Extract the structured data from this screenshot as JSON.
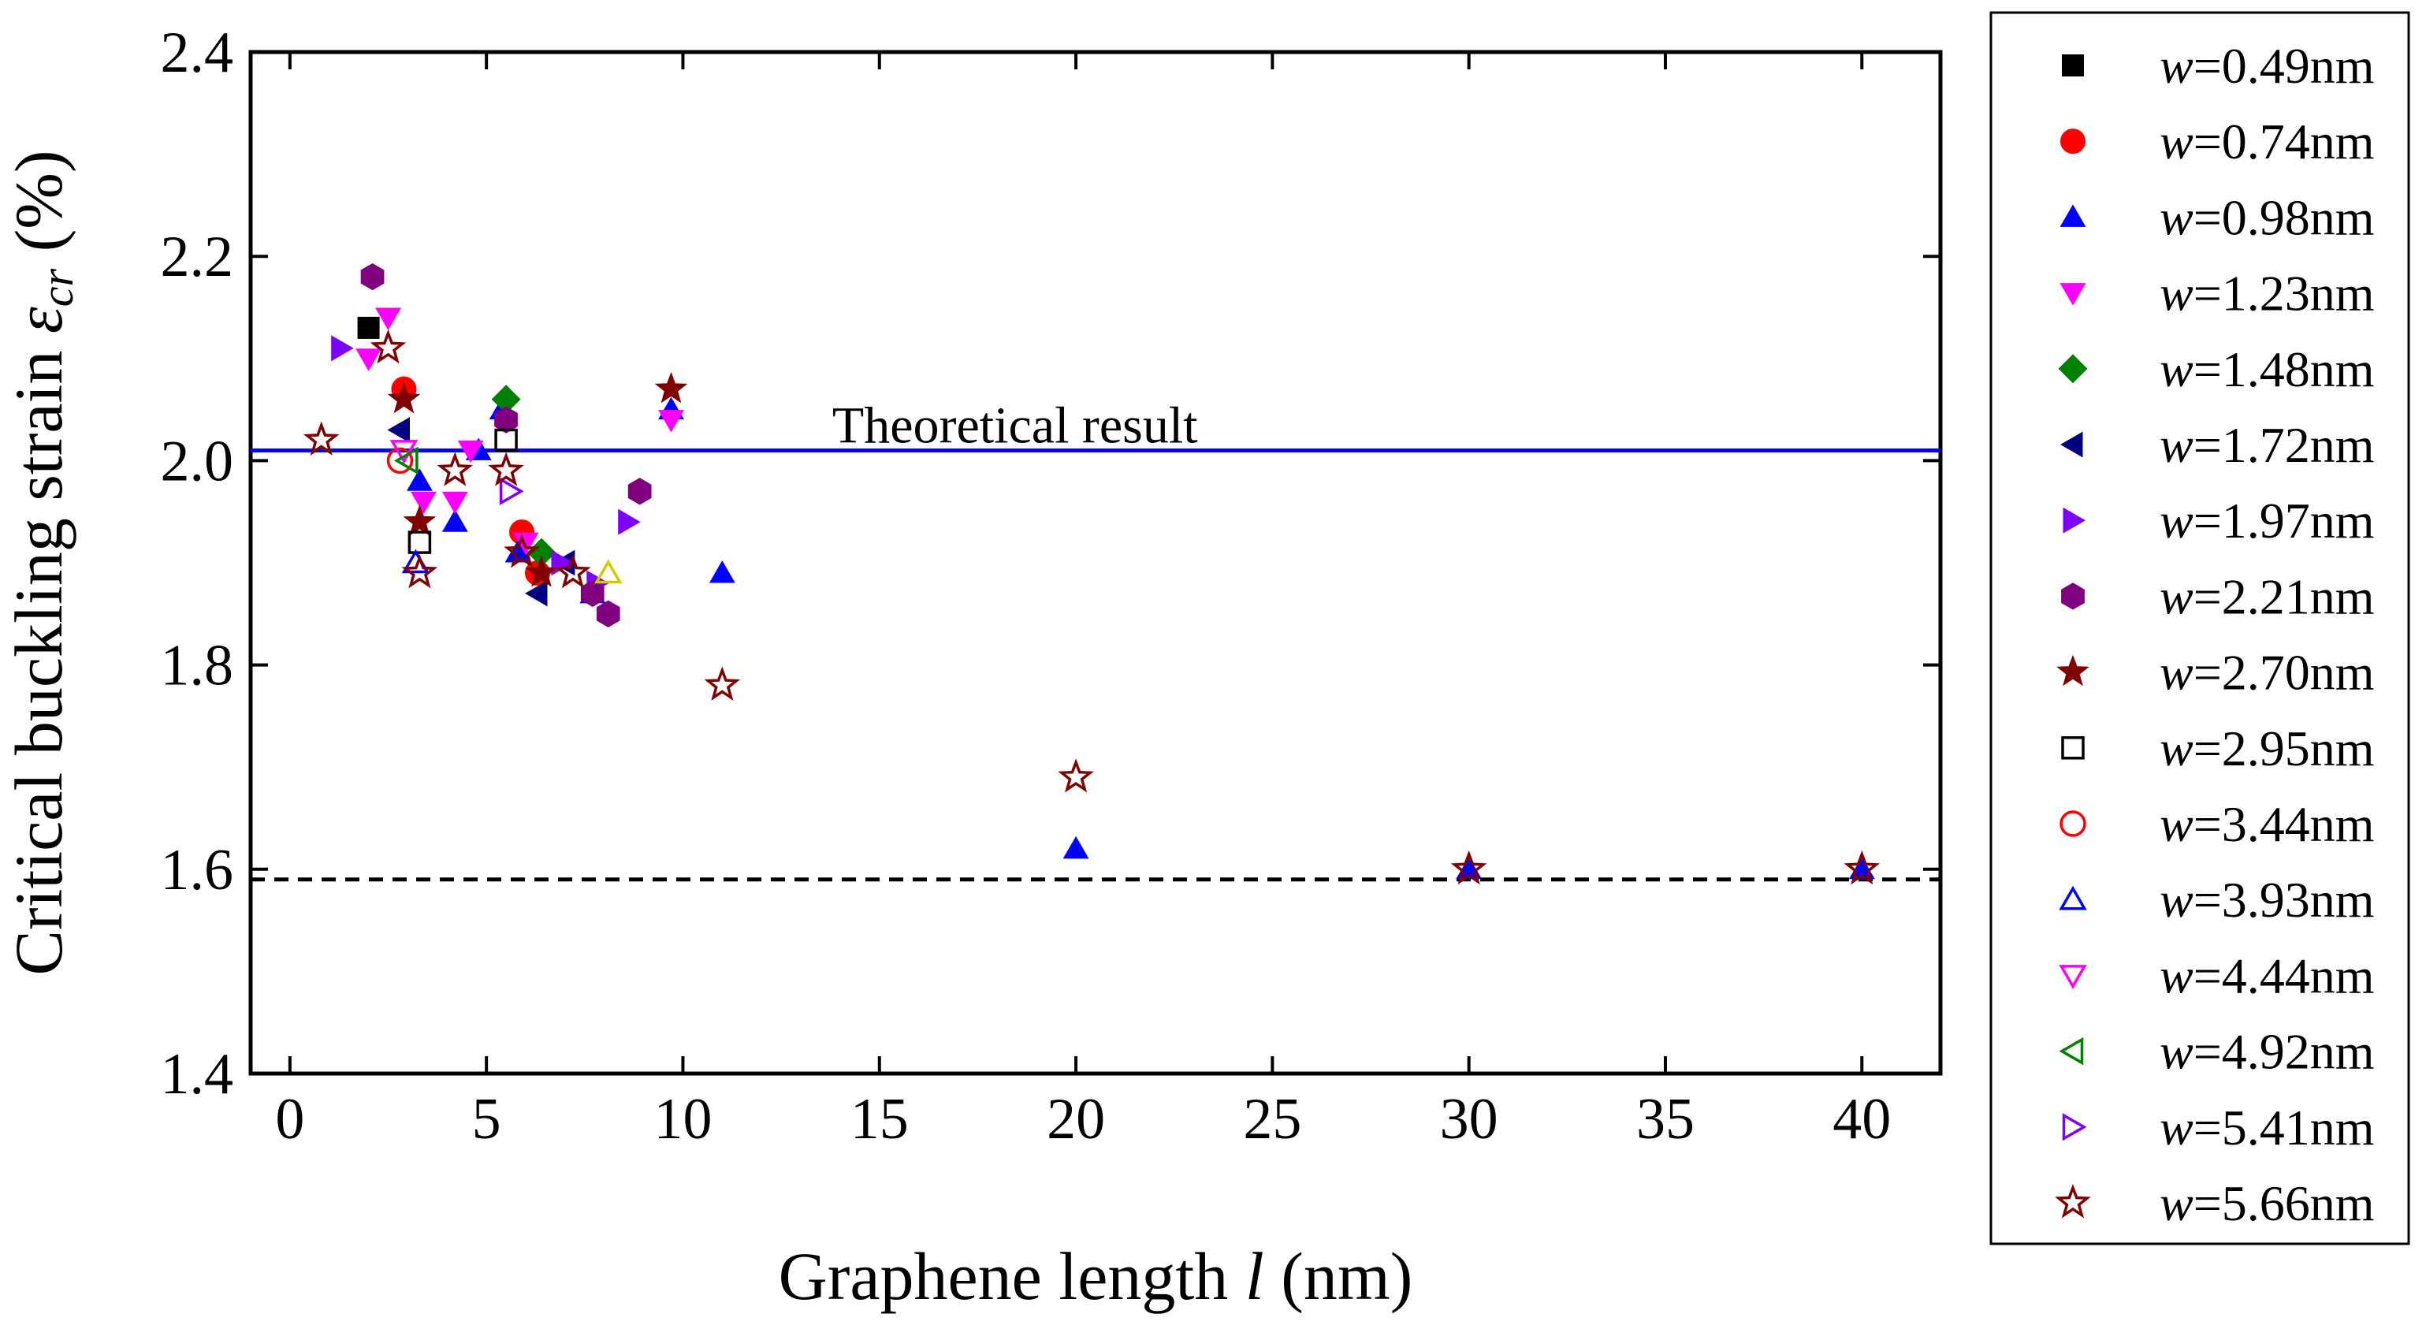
{
  "chart_data": {
    "type": "scatter",
    "title": "",
    "xlabel": {
      "prefix": "Graphene length ",
      "symbol": "l",
      "suffix": " (nm)"
    },
    "ylabel": {
      "prefix": "Critical buckling strain ",
      "symbol": "ε",
      "subscript": "cr",
      "suffix": " (%)"
    },
    "xlim": [
      -1,
      42
    ],
    "ylim": [
      1.4,
      2.4
    ],
    "xticks": [
      0,
      5,
      10,
      15,
      20,
      25,
      30,
      35,
      40
    ],
    "xtick_labels": [
      "0",
      "5",
      "10",
      "15",
      "20",
      "25",
      "30",
      "35",
      "40"
    ],
    "yticks": [
      1.4,
      1.6,
      1.8,
      2.0,
      2.2,
      2.4
    ],
    "ytick_labels": [
      "1.4",
      "1.6",
      "1.8",
      "2.0",
      "2.2",
      "2.4"
    ],
    "grid": false,
    "legend_position": "right-outside",
    "reference_lines": [
      {
        "name": "theoretical",
        "y": 2.01,
        "color": "#0000ff",
        "style": "solid",
        "label": "Theoretical result",
        "label_x": 13.8
      },
      {
        "name": "asymptote",
        "y": 1.59,
        "color": "#000000",
        "style": "dashed",
        "label": ""
      }
    ],
    "series": [
      {
        "name": "w=0.49nm",
        "label_prefix": "w",
        "label_value": "=0.49nm",
        "marker": "square",
        "fill": true,
        "color": "#000000",
        "points": [
          [
            2.0,
            2.13
          ]
        ]
      },
      {
        "name": "w=0.74nm",
        "label_prefix": "w",
        "label_value": "=0.74nm",
        "marker": "circle",
        "fill": true,
        "color": "#ff0000",
        "points": [
          [
            2.9,
            2.07
          ],
          [
            5.9,
            1.93
          ],
          [
            6.3,
            1.89
          ]
        ]
      },
      {
        "name": "w=0.98nm",
        "label_prefix": "w",
        "label_value": "=0.98nm",
        "marker": "triangle-up",
        "fill": true,
        "color": "#0000ff",
        "points": [
          [
            3.3,
            1.98
          ],
          [
            4.2,
            1.94
          ],
          [
            4.8,
            2.01
          ],
          [
            5.4,
            2.05
          ],
          [
            5.8,
            1.91
          ],
          [
            7.7,
            1.87
          ],
          [
            9.7,
            2.05
          ],
          [
            11.0,
            1.89
          ],
          [
            20.0,
            1.62
          ],
          [
            30.0,
            1.6
          ],
          [
            40.0,
            1.6
          ]
        ]
      },
      {
        "name": "w=1.23nm",
        "label_prefix": "w",
        "label_value": "=1.23nm",
        "marker": "triangle-down",
        "fill": true,
        "color": "#ff00ff",
        "points": [
          [
            2.0,
            2.1
          ],
          [
            2.5,
            2.14
          ],
          [
            3.4,
            1.96
          ],
          [
            4.2,
            1.96
          ],
          [
            4.6,
            2.01
          ],
          [
            9.7,
            2.04
          ],
          [
            6.0,
            1.92
          ]
        ]
      },
      {
        "name": "w=1.48nm",
        "label_prefix": "w",
        "label_value": "=1.48nm",
        "marker": "diamond",
        "fill": true,
        "color": "#008000",
        "points": [
          [
            5.5,
            2.06
          ],
          [
            6.4,
            1.91
          ]
        ]
      },
      {
        "name": "w=1.72nm",
        "label_prefix": "w",
        "label_value": "=1.72nm",
        "marker": "triangle-left",
        "fill": true,
        "color": "#000080",
        "points": [
          [
            2.8,
            2.03
          ],
          [
            6.3,
            1.87
          ],
          [
            7.0,
            1.9
          ]
        ]
      },
      {
        "name": "w=1.97nm",
        "label_prefix": "w",
        "label_value": "=1.97nm",
        "marker": "triangle-right",
        "fill": true,
        "color": "#8000ff",
        "points": [
          [
            1.3,
            2.11
          ],
          [
            6.9,
            1.9
          ],
          [
            8.6,
            1.94
          ],
          [
            7.8,
            1.88
          ]
        ]
      },
      {
        "name": "w=2.21nm",
        "label_prefix": "w",
        "label_value": "=2.21nm",
        "marker": "hexagon",
        "fill": true,
        "color": "#800080",
        "points": [
          [
            2.1,
            2.18
          ],
          [
            5.5,
            2.04
          ],
          [
            7.7,
            1.87
          ],
          [
            8.1,
            1.85
          ],
          [
            8.9,
            1.97
          ]
        ]
      },
      {
        "name": "w=2.70nm",
        "label_prefix": "w",
        "label_value": "=2.70nm",
        "marker": "star",
        "fill": true,
        "color": "#800000",
        "points": [
          [
            2.9,
            2.06
          ],
          [
            3.3,
            1.94
          ],
          [
            9.7,
            2.07
          ],
          [
            6.4,
            1.89
          ]
        ]
      },
      {
        "name": "w=2.95nm",
        "label_prefix": "w",
        "label_value": "=2.95nm",
        "marker": "square",
        "fill": false,
        "color": "#000000",
        "points": [
          [
            3.3,
            1.92
          ],
          [
            5.5,
            2.02
          ]
        ]
      },
      {
        "name": "w=3.44nm",
        "label_prefix": "w",
        "label_value": "=3.44nm",
        "marker": "circle",
        "fill": false,
        "color": "#ff0000",
        "points": [
          [
            2.8,
            2.0
          ]
        ]
      },
      {
        "name": "w=3.93nm",
        "label_prefix": "w",
        "label_value": "=3.93nm",
        "marker": "triangle-up",
        "fill": false,
        "color": "#0000ff",
        "points": [
          [
            3.2,
            1.9
          ]
        ]
      },
      {
        "name": "w=4.44nm",
        "label_prefix": "w",
        "label_value": "=4.44nm",
        "marker": "triangle-down",
        "fill": false,
        "color": "#ff00ff",
        "points": [
          [
            2.9,
            2.01
          ]
        ]
      },
      {
        "name": "w=4.92nm",
        "label_prefix": "w",
        "label_value": "=4.92nm",
        "marker": "triangle-left",
        "fill": false,
        "color": "#008000",
        "points": [
          [
            3.0,
            2.0
          ]
        ]
      },
      {
        "name": "w=5.41nm",
        "label_prefix": "w",
        "label_value": "=5.41nm",
        "marker": "triangle-right",
        "fill": false,
        "color": "#8000ff",
        "points": [
          [
            5.6,
            1.97
          ]
        ]
      },
      {
        "name": "w=5.66nm",
        "label_prefix": "w",
        "label_value": "=5.66nm",
        "marker": "star",
        "fill": false,
        "color": "#800000",
        "points": [
          [
            0.8,
            2.02
          ],
          [
            2.5,
            2.11
          ],
          [
            3.3,
            1.89
          ],
          [
            4.2,
            1.99
          ],
          [
            5.5,
            1.99
          ],
          [
            5.9,
            1.91
          ],
          [
            7.2,
            1.89
          ],
          [
            11.0,
            1.78
          ],
          [
            20.0,
            1.69
          ],
          [
            30.0,
            1.6
          ],
          [
            40.0,
            1.6
          ]
        ]
      }
    ],
    "extra_markers": [
      {
        "series": "w=3.93nm",
        "marker": "triangle-up",
        "fill": false,
        "color": "#cccc00",
        "points": [
          [
            8.1,
            1.89
          ]
        ]
      }
    ]
  }
}
